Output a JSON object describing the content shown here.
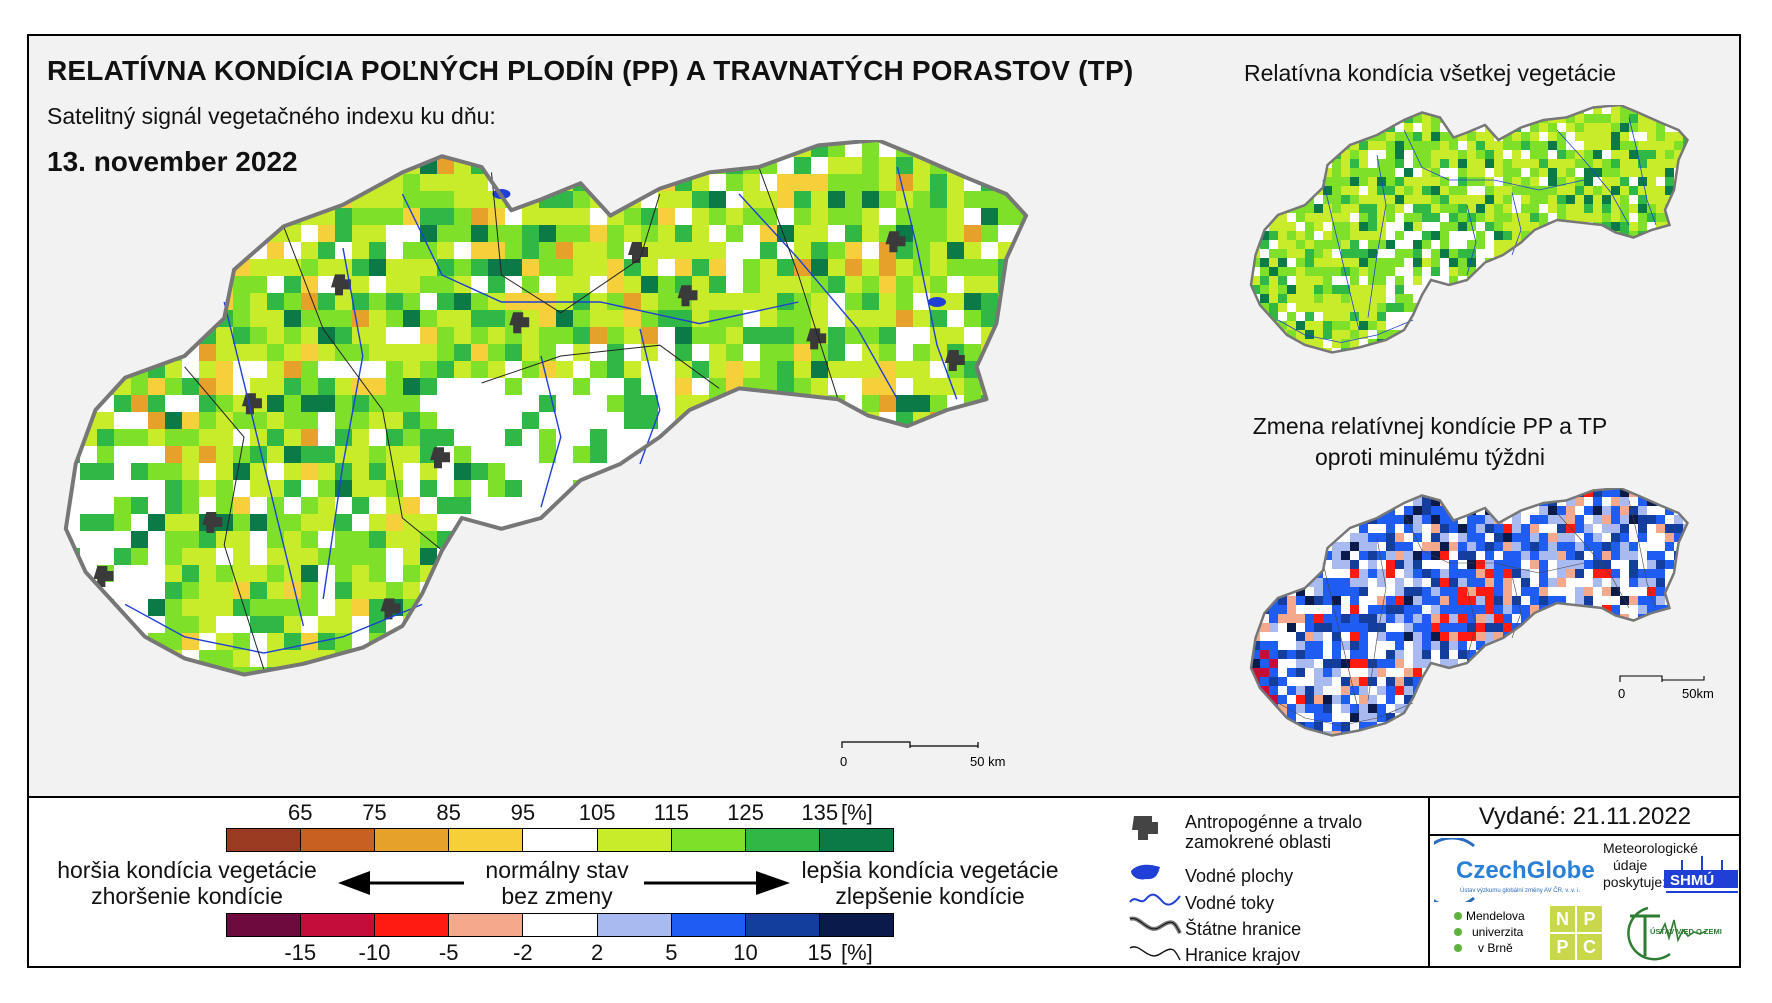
{
  "title": "RELATÍVNA KONDÍCIA POĽNÝCH PLODÍN (PP) A TRAVNATÝCH PORASTOV (TP)",
  "subtitle": "Satelitný signál vegetačného indexu ku dňu:",
  "date": "13. november 2022",
  "inset_top_title": "Relatívna kondícia všetkej vegetácie",
  "inset_bottom_title_line1": "Zmena relatívnej kondície PP a TP",
  "inset_bottom_title_line2": "oproti minulému týždni",
  "scale_main": {
    "zero": "0",
    "end": "50 km"
  },
  "scale_inset": {
    "zero": "0",
    "end": "50km"
  },
  "condition_scale": {
    "ticks": [
      "65",
      "75",
      "85",
      "95",
      "105",
      "115",
      "125",
      "135",
      "[%]"
    ],
    "colors": [
      "#9a3b22",
      "#c8601f",
      "#e6a12a",
      "#f5d03a",
      "#ffffff",
      "#c9ec2a",
      "#7fe02a",
      "#2fb845",
      "#0b7a46"
    ]
  },
  "change_scale": {
    "ticks": [
      "-15",
      "-10",
      "-5",
      "-2",
      "2",
      "5",
      "10",
      "15",
      "[%]"
    ],
    "colors": [
      "#6e0a3d",
      "#c40d3a",
      "#ff1a12",
      "#f4a98c",
      "#ffffff",
      "#a9baf0",
      "#1f5cf2",
      "#143e9e",
      "#0a1a4a"
    ]
  },
  "labels": {
    "worse_line1": "horšia kondícia vegetácie",
    "worse_line2": "zhoršenie kondície",
    "normal_line1": "normálny stav",
    "normal_line2": "bez zmeny",
    "better_line1": "lepšia kondícia vegetácie",
    "better_line2": "zlepšenie kondície"
  },
  "map_legend": {
    "urban_line1": "Antropogénne a trvalo",
    "urban_line2": "zamokrené oblasti",
    "water_bodies": "Vodné plochy",
    "rivers": "Vodné toky",
    "state_border": "Štátne hranice",
    "region_border": "Hranice krajov"
  },
  "issued": "Vydané: 21.11.2022",
  "logos": {
    "czechglobe": "CzechGlobe",
    "czechglobe_sub": "Ústav výzkumu globální změny AV ČR, v. v. i.",
    "met_line1": "Meteorologické",
    "met_line2": "údaje",
    "met_line3": "poskytuje:",
    "shmu": "SHMÚ",
    "mendel_line1": "Mendelova",
    "mendel_line2": "univerzita",
    "mendel_line3": "v Brně",
    "npc": [
      "N",
      "P",
      "P",
      "C"
    ],
    "uvz": "ÚSTAV VIED O ZEMI"
  },
  "colors": {
    "urban": "#3a3a3a",
    "water": "#1f3fd6",
    "border": "#666666"
  }
}
